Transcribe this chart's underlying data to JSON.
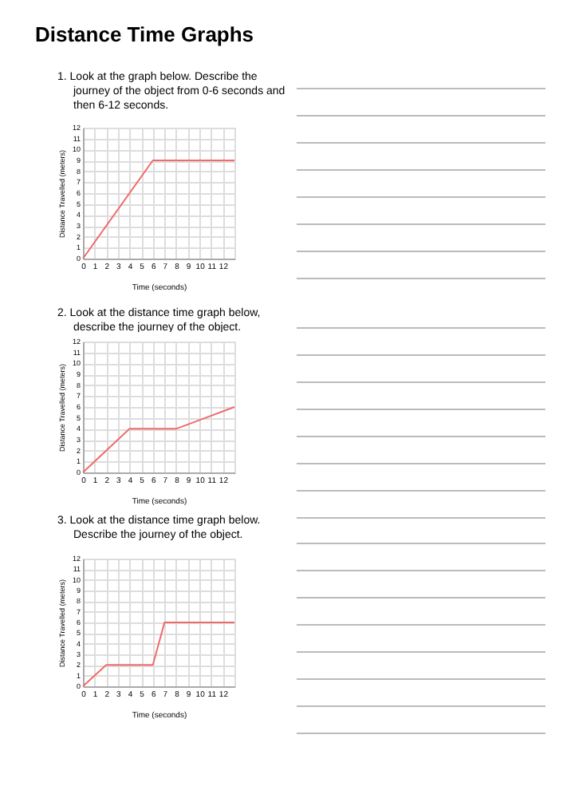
{
  "chart_data": [
    {
      "type": "line",
      "title": "Distance Time Graphs",
      "subtitle": "1.  Look at the graph below. Describe the journey of the object from 0-6 seconds and then 6-12 seconds.",
      "xlabel": "Time (seconds)",
      "ylabel": "Distance Travelled (meters)",
      "x": [
        0,
        6,
        13
      ],
      "series": [
        {
          "color": "#f06a6a",
          "values": [
            0,
            9,
            9
          ]
        }
      ],
      "xlim": [
        0,
        13
      ],
      "xticks": [
        0,
        1,
        2,
        3,
        4,
        5,
        6,
        7,
        8,
        9,
        10,
        11,
        12
      ],
      "ylim": [
        0,
        12
      ],
      "yticks": [
        0,
        1,
        2,
        3,
        4,
        5,
        6,
        7,
        8,
        9,
        10,
        11,
        12
      ],
      "grid": true
    },
    {
      "type": "line",
      "subtitle": "2.  Look at the distance time graph below, describe the journey of the object.",
      "xlabel": "Time (seconds)",
      "ylabel": "Distance Travelled (meters)",
      "x": [
        0,
        4,
        8,
        13
      ],
      "series": [
        {
          "color": "#f06a6a",
          "values": [
            0,
            4,
            4,
            6
          ]
        }
      ],
      "xlim": [
        0,
        13
      ],
      "xticks": [
        0,
        1,
        2,
        3,
        4,
        5,
        6,
        7,
        8,
        9,
        10,
        11,
        12
      ],
      "ylim": [
        0,
        12
      ],
      "yticks": [
        0,
        1,
        2,
        3,
        4,
        5,
        6,
        7,
        8,
        9,
        10,
        11,
        12
      ],
      "grid": true
    },
    {
      "type": "line",
      "subtitle": "3.  Look at the distance time graph below. Describe the journey of the object.",
      "xlabel": "Time (seconds)",
      "ylabel": "Distance Travelled (meters)",
      "x": [
        0,
        2,
        6,
        7,
        13
      ],
      "series": [
        {
          "color": "#f06a6a",
          "values": [
            0,
            2,
            2,
            6,
            6
          ]
        }
      ],
      "xlim": [
        0,
        13
      ],
      "xticks": [
        0,
        1,
        2,
        3,
        4,
        5,
        6,
        7,
        8,
        9,
        10,
        11,
        12
      ],
      "ylim": [
        0,
        12
      ],
      "yticks": [
        0,
        1,
        2,
        3,
        4,
        5,
        6,
        7,
        8,
        9,
        10,
        11,
        12
      ],
      "grid": true
    }
  ]
}
